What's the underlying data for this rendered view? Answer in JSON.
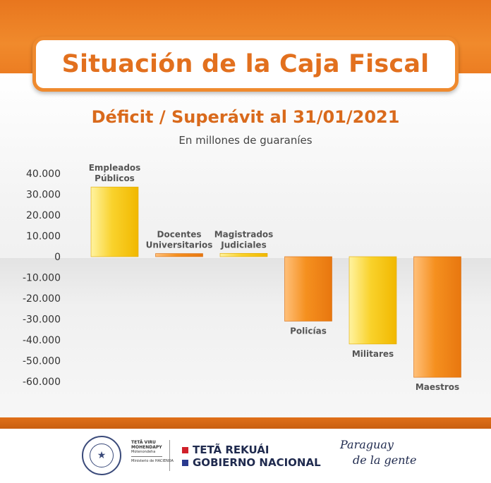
{
  "header": {
    "title": "Situación de la Caja Fiscal",
    "subtitle": "Déficit / Superávit al 31/01/2021",
    "unit_note": "En millones de guaraníes"
  },
  "colors": {
    "orange": "#ef8a2e",
    "yellow": "#f8c51a",
    "bar_orange": "#f08a1e"
  },
  "chart_data": {
    "type": "bar",
    "title": "Déficit / Superávit al 31/01/2021",
    "subtitle": "En millones de guaraníes",
    "ylim": [
      -60000,
      40000
    ],
    "grid": false,
    "legend": "none",
    "y_ticks": [
      "40.000",
      "30.000",
      "20.000",
      "10.000",
      "0",
      "-10.000",
      "-20.000",
      "-30.000",
      "-40.000",
      "-50.000",
      "-60.000"
    ],
    "y_tick_values": [
      40000,
      30000,
      20000,
      10000,
      0,
      -10000,
      -20000,
      -30000,
      -40000,
      -50000,
      -60000
    ],
    "categories": [
      {
        "label": [
          "Empleados",
          "Públicos"
        ],
        "value": 33500,
        "color": "yellow"
      },
      {
        "label": [
          "Docentes",
          "Universitarios"
        ],
        "value": 1500,
        "color": "orange"
      },
      {
        "label": [
          "Magistrados",
          "Judiciales"
        ],
        "value": 1600,
        "color": "yellow"
      },
      {
        "label": [
          "Policías"
        ],
        "value": -31000,
        "color": "orange"
      },
      {
        "label": [
          "Militares"
        ],
        "value": -42000,
        "color": "yellow"
      },
      {
        "label": [
          "Maestros"
        ],
        "value": -58000,
        "color": "orange"
      }
    ]
  },
  "footer": {
    "ministry_line1": "TETÃ VIRU MOHENDAPY",
    "ministry_line2": "Motenondeha",
    "ministry_line3": "Ministerio de HACIENDA",
    "gov_line1": "TETÃ REKUÁI",
    "gov_line2": "GOBIERNO NACIONAL",
    "slogan_line1": "Paraguay",
    "slogan_line2": "de la gente"
  }
}
